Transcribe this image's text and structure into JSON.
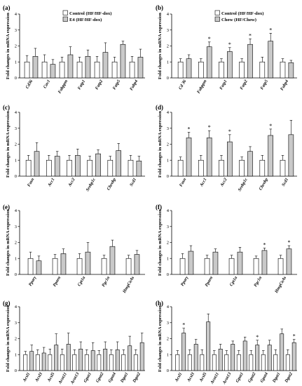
{
  "figure": {
    "ylabel": "Fold changes in mRNA expression",
    "colors": {
      "control": "#ffffff",
      "treated": "#c9c9c9",
      "bar_border": "#000000"
    }
  },
  "chart_data": [
    {
      "panel": "(a)",
      "type": "bar",
      "ylim": [
        0,
        4
      ],
      "yticks": [
        0,
        1,
        2,
        3,
        4
      ],
      "legend": [
        "Control (HF/HF-dox)",
        "E4 (HF/HF-dox)"
      ],
      "categories": [
        "Cd36",
        "Cav1",
        "Fabppm",
        "Fatp1",
        "Fatp2",
        "Fatp5",
        "Fabp4"
      ],
      "series": [
        {
          "name": "Control (HF/HF-dox)",
          "values": [
            1.0,
            1.0,
            1.0,
            1.0,
            1.0,
            1.0,
            1.0
          ],
          "errors": [
            0.4,
            0.45,
            0.3,
            0.3,
            0.35,
            0.3,
            0.35
          ]
        },
        {
          "name": "E4 (HF/HF-dox)",
          "values": [
            1.35,
            0.85,
            1.45,
            1.35,
            1.6,
            2.1,
            1.3
          ],
          "errors": [
            0.5,
            0.3,
            0.5,
            0.4,
            0.6,
            0.2,
            0.5
          ]
        }
      ],
      "significant": []
    },
    {
      "panel": "(b)",
      "type": "bar",
      "ylim": [
        0,
        4
      ],
      "yticks": [
        0,
        1,
        2,
        3,
        4
      ],
      "legend": [
        "Control (HF/HF-dox)",
        "Chow (HF/Chow)"
      ],
      "categories": [
        "Cd 36",
        "Fabppm",
        "Fatp1",
        "Fatp2",
        "Fatp5",
        "Fabp4"
      ],
      "series": [
        {
          "name": "Control (HF/HF-dox)",
          "values": [
            1.0,
            1.0,
            1.0,
            1.0,
            1.0,
            1.0
          ],
          "errors": [
            0.2,
            0.2,
            0.2,
            0.2,
            0.3,
            0.2
          ]
        },
        {
          "name": "Chow (HF/Chow)",
          "values": [
            1.2,
            1.95,
            1.65,
            2.1,
            2.3,
            0.95
          ],
          "errors": [
            0.25,
            0.3,
            0.25,
            0.35,
            0.5,
            0.15
          ]
        }
      ],
      "significant": [
        1,
        2,
        3,
        4
      ]
    },
    {
      "panel": "(c)",
      "type": "bar",
      "ylim": [
        0,
        4
      ],
      "yticks": [
        0,
        1,
        2,
        3,
        4
      ],
      "categories": [
        "Fasn",
        "Acc1",
        "Acc2",
        "Srebp1c",
        "Chrebp",
        "Scd1"
      ],
      "series": [
        {
          "name": "",
          "values": [
            1.0,
            1.0,
            1.0,
            1.0,
            1.0,
            1.0
          ],
          "errors": [
            0.3,
            0.3,
            0.3,
            0.25,
            0.25,
            0.3
          ]
        },
        {
          "name": "",
          "values": [
            1.55,
            1.25,
            1.3,
            1.4,
            1.6,
            0.95
          ],
          "errors": [
            0.55,
            0.3,
            0.4,
            0.25,
            0.45,
            0.3
          ]
        }
      ],
      "significant": []
    },
    {
      "panel": "(d)",
      "type": "bar",
      "ylim": [
        0,
        4
      ],
      "yticks": [
        0,
        1,
        2,
        3,
        4
      ],
      "categories": [
        "Fasn",
        "Acc1",
        "Acc2",
        "Srebp1c",
        "Chrebp",
        "Scd1"
      ],
      "series": [
        {
          "name": "",
          "values": [
            1.0,
            1.0,
            1.0,
            1.0,
            1.0,
            1.0
          ],
          "errors": [
            0.2,
            0.3,
            0.3,
            0.2,
            0.3,
            0.3
          ]
        },
        {
          "name": "",
          "values": [
            2.4,
            2.4,
            2.15,
            1.55,
            2.55,
            2.6
          ],
          "errors": [
            0.35,
            0.45,
            0.45,
            0.3,
            0.4,
            0.9
          ]
        }
      ],
      "significant": [
        0,
        1,
        2,
        4
      ]
    },
    {
      "panel": "(e)",
      "type": "bar",
      "ylim": [
        0,
        4
      ],
      "yticks": [
        0,
        1,
        2,
        3,
        4
      ],
      "categories": [
        "Pparγ",
        "Pparα",
        "Cpt1a",
        "Pgc1α",
        "HmgCoAs"
      ],
      "series": [
        {
          "name": "",
          "values": [
            1.0,
            1.0,
            1.0,
            1.0,
            1.0
          ],
          "errors": [
            0.4,
            0.25,
            0.3,
            0.2,
            0.2
          ]
        },
        {
          "name": "",
          "values": [
            0.85,
            1.3,
            1.4,
            1.75,
            1.25
          ],
          "errors": [
            0.3,
            0.3,
            0.6,
            0.4,
            0.25
          ]
        }
      ],
      "significant": []
    },
    {
      "panel": "(f)",
      "type": "bar",
      "ylim": [
        0,
        4
      ],
      "yticks": [
        0,
        1,
        2,
        3,
        4
      ],
      "categories": [
        "Pparγ",
        "Pparα",
        "Cpt1a",
        "Pgc1α",
        "HmgCoAs"
      ],
      "series": [
        {
          "name": "",
          "values": [
            1.0,
            1.0,
            1.0,
            1.0,
            1.0
          ],
          "errors": [
            0.3,
            0.2,
            0.2,
            0.15,
            0.2
          ]
        },
        {
          "name": "",
          "values": [
            1.45,
            1.4,
            1.4,
            1.5,
            1.6
          ],
          "errors": [
            0.35,
            0.2,
            0.3,
            0.15,
            0.2
          ]
        }
      ],
      "significant": [
        3,
        4
      ]
    },
    {
      "panel": "(g)",
      "type": "bar",
      "ylim": [
        0,
        4
      ],
      "yticks": [
        0,
        1,
        2,
        3,
        4
      ],
      "categories": [
        "Acsl1",
        "Acsl3",
        "Acsl5",
        "Acot11",
        "Acot13",
        "Gpat1",
        "Gpat2",
        "Gpat4",
        "Dgat1",
        "Dgat2"
      ],
      "series": [
        {
          "name": "",
          "values": [
            1.0,
            1.0,
            1.0,
            1.0,
            1.0,
            1.0,
            1.0,
            1.0,
            1.0,
            1.0
          ],
          "errors": [
            0.2,
            0.3,
            0.35,
            0.35,
            0.3,
            0.3,
            0.25,
            0.3,
            0.3,
            0.3
          ]
        },
        {
          "name": "",
          "values": [
            1.2,
            1.1,
            1.6,
            1.65,
            1.35,
            1.25,
            1.35,
            1.3,
            1.55,
            1.75
          ],
          "errors": [
            0.4,
            0.35,
            0.7,
            0.7,
            0.45,
            0.5,
            0.45,
            0.5,
            0.6,
            0.6
          ]
        }
      ],
      "significant": []
    },
    {
      "panel": "(h)",
      "type": "bar",
      "ylim": [
        0,
        4
      ],
      "yticks": [
        0,
        1,
        2,
        3,
        4
      ],
      "categories": [
        "Acsl1",
        "Acsl3",
        "Acsl5",
        "Acot11",
        "Acot13",
        "Gpat1",
        "Gpat2",
        "Gpat4",
        "Dgat1",
        "Dgat2"
      ],
      "series": [
        {
          "name": "",
          "values": [
            1.0,
            1.0,
            1.0,
            1.0,
            1.0,
            1.0,
            1.0,
            1.0,
            1.0,
            1.0
          ],
          "errors": [
            0.25,
            0.3,
            0.3,
            0.25,
            0.25,
            0.25,
            0.25,
            0.25,
            0.3,
            0.3
          ]
        },
        {
          "name": "",
          "values": [
            2.35,
            1.65,
            3.05,
            1.35,
            1.65,
            1.85,
            1.6,
            1.6,
            2.3,
            1.75
          ],
          "errors": [
            0.3,
            0.3,
            0.5,
            0.3,
            0.2,
            0.25,
            0.3,
            0.3,
            0.3,
            0.2
          ]
        }
      ],
      "significant": [
        0,
        6,
        9
      ]
    }
  ]
}
